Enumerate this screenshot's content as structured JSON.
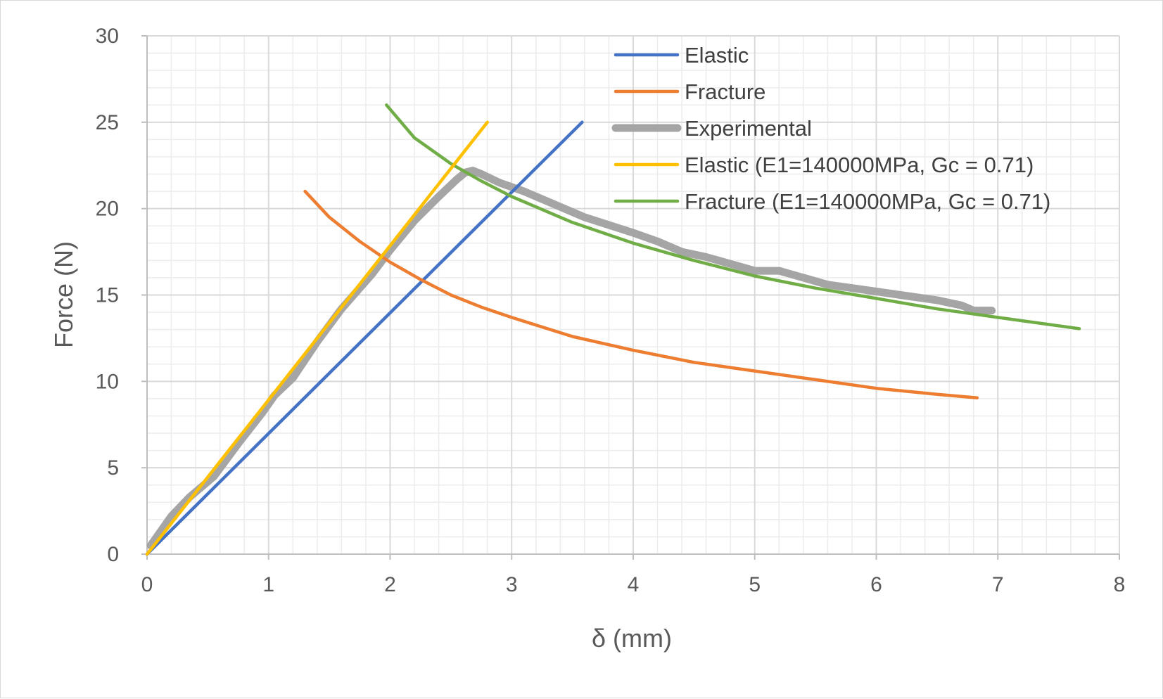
{
  "chart_data": {
    "type": "line",
    "xlabel": "δ (mm)",
    "ylabel": "Force (N)",
    "xlim": [
      0,
      8
    ],
    "ylim": [
      0,
      30
    ],
    "x_ticks": [
      "0",
      "1",
      "2",
      "3",
      "4",
      "5",
      "6",
      "7",
      "8"
    ],
    "y_ticks": [
      "0",
      "5",
      "10",
      "15",
      "20",
      "25",
      "30"
    ],
    "grid": "major and minor",
    "legend_position": "top-right",
    "series": [
      {
        "name": "Elastic",
        "color": "#4472c4",
        "x": [
          0,
          3.58
        ],
        "y": [
          0,
          25
        ]
      },
      {
        "name": "Fracture",
        "color": "#ed7d31",
        "x": [
          1.3,
          1.5,
          1.75,
          2.0,
          2.25,
          2.5,
          2.75,
          3.0,
          3.5,
          4.0,
          4.5,
          5.0,
          5.5,
          6.0,
          6.5,
          6.83
        ],
        "y": [
          21.0,
          19.5,
          18.1,
          16.9,
          15.9,
          15.0,
          14.3,
          13.7,
          12.6,
          11.8,
          11.1,
          10.6,
          10.1,
          9.6,
          9.25,
          9.05
        ]
      },
      {
        "name": "Experimental",
        "color": "#a5a5a5",
        "x": [
          0.03,
          0.2,
          0.35,
          0.55,
          0.75,
          0.95,
          1.05,
          1.2,
          1.4,
          1.6,
          1.85,
          2.0,
          2.2,
          2.4,
          2.55,
          2.62,
          2.68,
          2.75,
          2.9,
          3.1,
          3.3,
          3.6,
          4.0,
          4.2,
          4.4,
          4.6,
          4.85,
          5.0,
          5.2,
          5.3,
          5.6,
          5.9,
          6.2,
          6.5,
          6.7,
          6.8,
          6.95
        ],
        "y": [
          0.5,
          2.2,
          3.3,
          4.5,
          6.4,
          8.2,
          9.2,
          10.2,
          12.3,
          14.2,
          16.2,
          17.6,
          19.3,
          20.7,
          21.7,
          22.1,
          22.2,
          22.0,
          21.5,
          21.0,
          20.4,
          19.5,
          18.6,
          18.1,
          17.5,
          17.2,
          16.7,
          16.4,
          16.4,
          16.2,
          15.6,
          15.3,
          15.0,
          14.7,
          14.4,
          14.1,
          14.1
        ]
      },
      {
        "name": "Elastic (E1=140000MPa, Gc = 0.71)",
        "color": "#ffc000",
        "x": [
          0,
          2.8
        ],
        "y": [
          0,
          25
        ]
      },
      {
        "name": "Fracture (E1=140000MPa, Gc = 0.71)",
        "color": "#70ad47",
        "x": [
          1.97,
          2.2,
          2.5,
          2.75,
          3.0,
          3.5,
          4.0,
          4.5,
          5.0,
          5.5,
          6.0,
          6.5,
          7.0,
          7.67
        ],
        "y": [
          26.0,
          24.1,
          22.6,
          21.6,
          20.7,
          19.2,
          18.0,
          17.0,
          16.1,
          15.4,
          14.8,
          14.2,
          13.7,
          13.05
        ]
      }
    ]
  }
}
